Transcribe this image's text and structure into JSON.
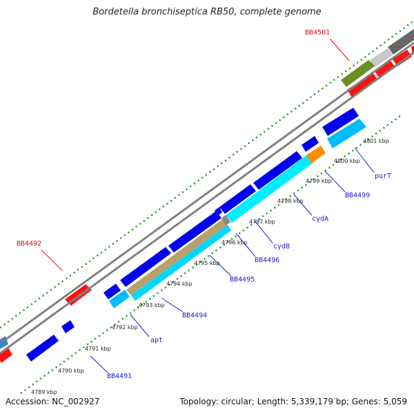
{
  "title": "Bordetella bronchiseptica RB50, complete genome",
  "footer": {
    "accession": "Accession: NC_002927",
    "stats": "Topology: circular; Length: 5,339,179 bp; Genes: 5,059"
  },
  "colors": {
    "forward_cds": "#ff0000",
    "reverse_cds": "#0000ee",
    "reverse_cds_light": "#00bbff",
    "rna": "#6b8e23",
    "pseudo": "#808080",
    "other": "#ff8c00",
    "backbone": "#808080",
    "tick": "#228b22"
  },
  "ruler_labels": [
    "4789 kbp",
    "4790 kbp",
    "4791 kbp",
    "4792 kbp",
    "4793 kbp",
    "4794 kbp",
    "4795 kbp",
    "4796 kbp",
    "4797 kbp",
    "4798 kbp",
    "4799 kbp",
    "4800 kbp",
    "4801 kbp"
  ],
  "gene_labels_reverse": [
    "BB4491",
    "apt",
    "BB4494",
    "BB4495",
    "BB4496",
    "cydB",
    "cydA",
    "BB4499",
    "purT"
  ],
  "gene_labels_forward": [
    "BB4492",
    "BB4501"
  ]
}
